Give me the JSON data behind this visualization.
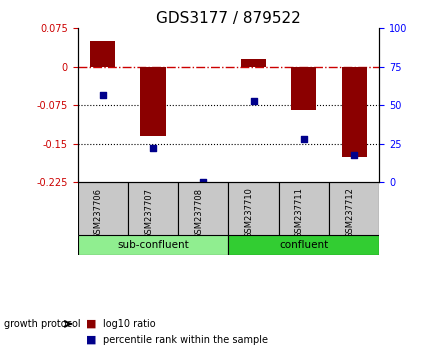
{
  "title": "GDS3177 / 879522",
  "samples": [
    "GSM237706",
    "GSM237707",
    "GSM237708",
    "GSM237710",
    "GSM237711",
    "GSM237712"
  ],
  "log10_ratio": [
    0.05,
    -0.135,
    0.0,
    0.015,
    -0.085,
    -0.175
  ],
  "percentile_rank": [
    57,
    22,
    0,
    53,
    28,
    18
  ],
  "ylim_left": [
    -0.225,
    0.075
  ],
  "ylim_right": [
    0,
    100
  ],
  "yticks_left": [
    0.075,
    0,
    -0.075,
    -0.15,
    -0.225
  ],
  "yticks_right": [
    100,
    75,
    50,
    25,
    0
  ],
  "groups": [
    {
      "label": "sub-confluent",
      "indices": [
        0,
        1,
        2
      ],
      "color": "#90ee90"
    },
    {
      "label": "confluent",
      "indices": [
        3,
        4,
        5
      ],
      "color": "#32cd32"
    }
  ],
  "group_label": "growth protocol",
  "bar_color": "#8b0000",
  "dot_color": "#00008b",
  "bar_width": 0.5,
  "tick_label_fontsize": 7,
  "title_fontsize": 11,
  "label_fontsize": 8
}
